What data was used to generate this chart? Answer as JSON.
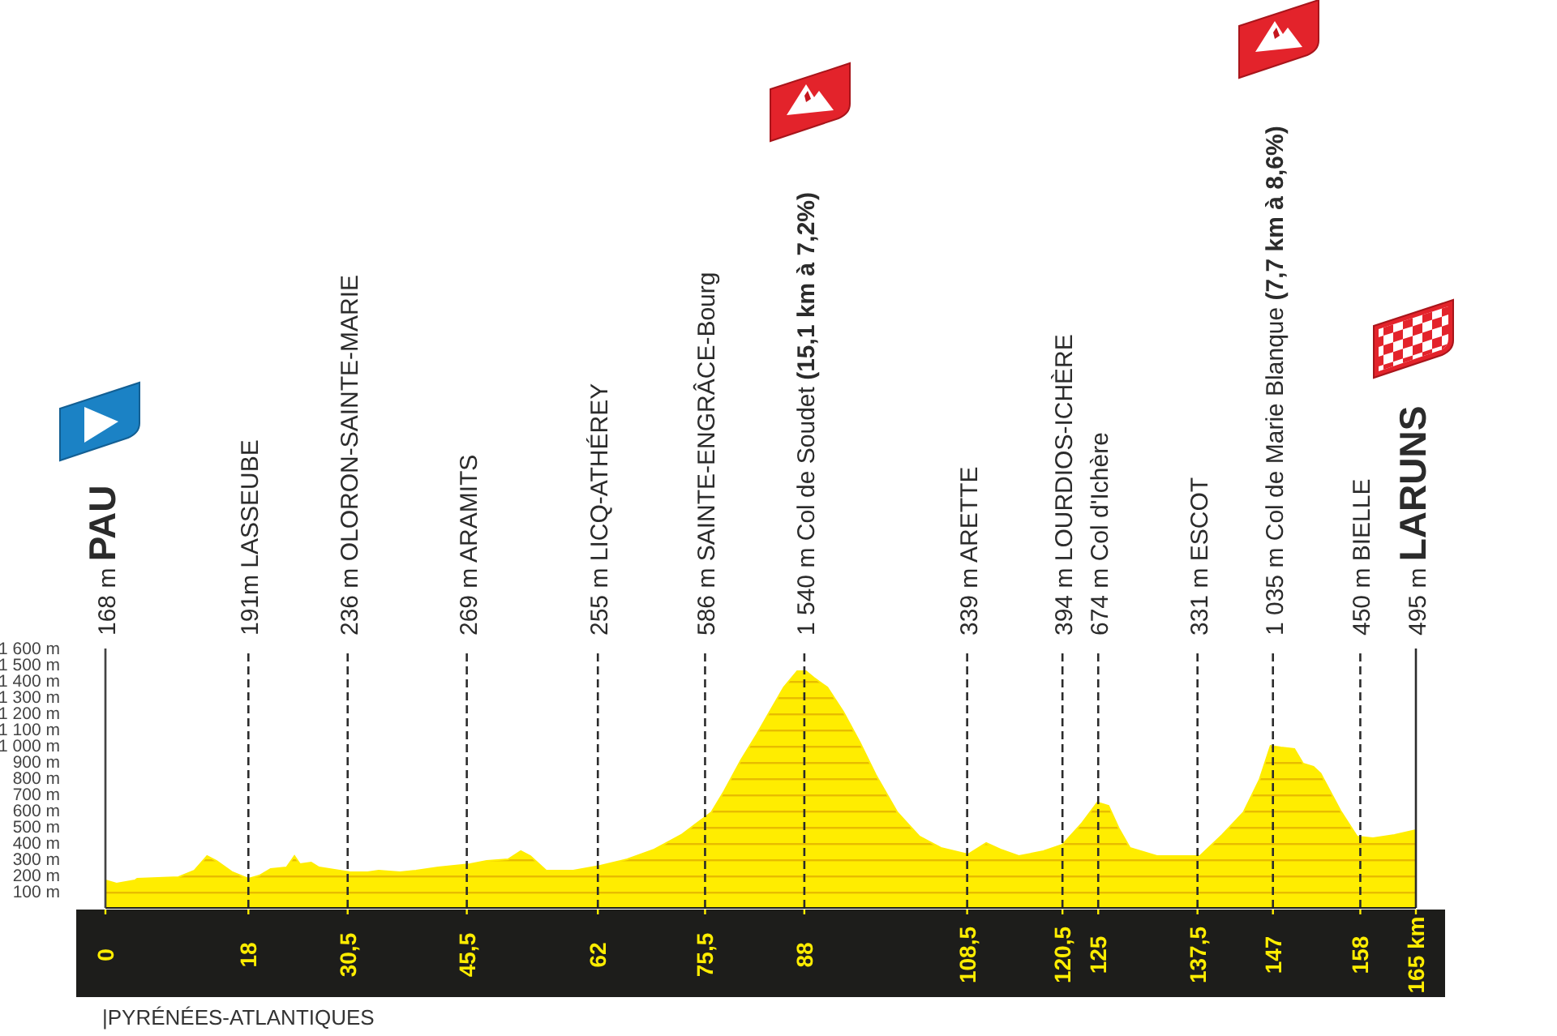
{
  "chart_data": {
    "type": "area",
    "color": "#ffed00",
    "x": [
      0,
      1.4,
      3.7,
      4,
      9.2,
      11.2,
      12.8,
      14,
      16,
      18,
      19.4,
      20.8,
      22.8,
      23.8,
      24.5,
      25.9,
      26.9,
      28.2,
      30.8,
      33,
      34.4,
      37.1,
      39.1,
      41.9,
      45.9,
      48,
      50.7,
      52.3,
      53.5,
      55.5,
      58.9,
      62.3,
      65.7,
      69.1,
      72.5,
      76.3,
      77.9,
      80,
      82,
      83.4,
      85.4,
      87.1,
      88.2,
      89.2,
      90.9,
      92.9,
      95,
      97,
      99.7,
      102.5,
      105.2,
      108.6,
      110.9,
      112.7,
      115,
      118.1,
      120.5,
      122.9,
      124.9,
      126.3,
      127.6,
      129,
      132.4,
      135.1,
      137.8,
      140.6,
      143.3,
      145.3,
      146.7,
      148,
      149.7,
      150.8,
      152.1,
      153,
      155.5,
      157.6,
      159.6,
      162.3,
      165
    ],
    "values": [
      170,
      150,
      170,
      180,
      190,
      230,
      320,
      290,
      220,
      180,
      200,
      240,
      250,
      320,
      270,
      280,
      250,
      240,
      220,
      220,
      230,
      220,
      230,
      250,
      270,
      290,
      300,
      350,
      320,
      230,
      230,
      260,
      300,
      360,
      450,
      590,
      720,
      910,
      1070,
      1190,
      1360,
      1460,
      1460,
      1420,
      1360,
      1210,
      1020,
      820,
      590,
      440,
      370,
      330,
      400,
      360,
      320,
      350,
      390,
      520,
      650,
      630,
      490,
      370,
      320,
      320,
      320,
      450,
      590,
      790,
      1000,
      990,
      980,
      890,
      870,
      830,
      600,
      440,
      430,
      450,
      480
    ],
    "xlim": [
      0,
      165
    ],
    "xticks": [
      0,
      18,
      {
        "value": 30.5,
        "label": "30,5"
      },
      {
        "value": 45.5,
        "label": "45,5"
      },
      62,
      {
        "value": 75.5,
        "label": "75,5"
      },
      88,
      {
        "value": 108.5,
        "label": "108,5"
      },
      {
        "value": 120.5,
        "label": "120,5"
      },
      125,
      {
        "value": 137.5,
        "label": "137,5"
      },
      147,
      158,
      {
        "value": 165,
        "label": "165 km"
      }
    ],
    "ylim": [
      0,
      1600
    ],
    "yticks": [
      {
        "value": 100,
        "label": "100 m"
      },
      {
        "value": 200,
        "label": "200 m"
      },
      {
        "value": 300,
        "label": "300 m"
      },
      {
        "value": 400,
        "label": "400 m"
      },
      {
        "value": 500,
        "label": "500 m"
      },
      {
        "value": 600,
        "label": "600 m"
      },
      {
        "value": 700,
        "label": "700 m"
      },
      {
        "value": 800,
        "label": "800 m"
      },
      {
        "value": 900,
        "label": "900 m"
      },
      {
        "value": 1000,
        "label": "1 000 m"
      },
      {
        "value": 1100,
        "label": "1 100 m"
      },
      {
        "value": 1200,
        "label": "1 200 m"
      },
      {
        "value": 1300,
        "label": "1 300 m"
      },
      {
        "value": 1400,
        "label": "1 400 m"
      },
      {
        "value": 1500,
        "label": "1 500 m"
      },
      {
        "value": 1600,
        "label": "1 600 m"
      }
    ],
    "ref_lines": [
      {
        "axis": "x",
        "value": 0,
        "label": "168 m PAU",
        "line_style": "solid"
      },
      {
        "axis": "x",
        "value": 18,
        "label": "191m LASSEUBE",
        "line_style": "dashed"
      },
      {
        "axis": "x",
        "value": 30.5,
        "label": "236 m OLORON-SAINTE-MARIE",
        "line_style": "dashed"
      },
      {
        "axis": "x",
        "value": 45.5,
        "label": "269 m ARAMITS",
        "line_style": "dashed"
      },
      {
        "axis": "x",
        "value": 62,
        "label": "255 m LICQ-ATHÉREY",
        "line_style": "dashed"
      },
      {
        "axis": "x",
        "value": 75.5,
        "label": "586 m SAINTE-ENGRÂCE-Bourg",
        "line_style": "dashed"
      },
      {
        "axis": "x",
        "value": 88,
        "label": "1 540 m Col de Soudet (15,1 km à 7,2%)",
        "line_style": "dashed"
      },
      {
        "axis": "x",
        "value": 108.5,
        "label": "339 m ARETTE",
        "line_style": "dashed"
      },
      {
        "axis": "x",
        "value": 120.5,
        "label": "394 m LOURDIOS-ICHÈRE",
        "line_style": "dashed"
      },
      {
        "axis": "x",
        "value": 125,
        "label": "674 m Col d'Ichère",
        "line_style": "dashed"
      },
      {
        "axis": "x",
        "value": 137.5,
        "label": "331 m ESCOT",
        "line_style": "dashed"
      },
      {
        "axis": "x",
        "value": 147,
        "label": "1 035 m Col de Marie Blanque (7,7 km à 8,6%)",
        "line_style": "dashed"
      },
      {
        "axis": "x",
        "value": 158,
        "label": "450 m BIELLE",
        "line_style": "dashed"
      },
      {
        "axis": "x",
        "value": 165,
        "label": "495 m LARUNS",
        "line_style": "solid"
      }
    ],
    "annotations": [
      "|PYRÉNÉES-ATLANTIQUES"
    ]
  }
}
